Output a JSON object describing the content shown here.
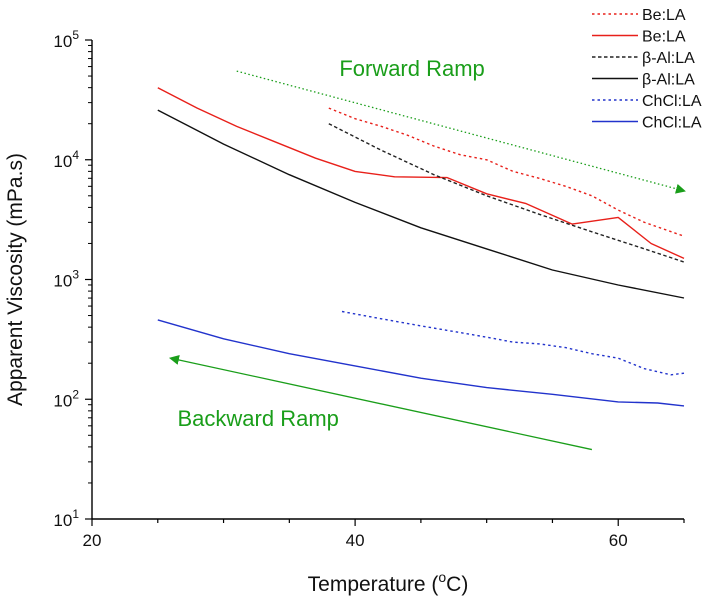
{
  "chart_data": {
    "type": "line",
    "title": "",
    "xlabel": "Temperature (oC)",
    "xlabel_parts": {
      "main": "Temperature (",
      "sup": "o",
      "tail": "C)"
    },
    "ylabel": "Apparent Viscosity (mPa.s)",
    "y_scale": "log",
    "xlim": [
      20,
      65
    ],
    "ylim": [
      10,
      100000
    ],
    "x_ticks": [
      20,
      40,
      60
    ],
    "x_tick_labels": [
      "20",
      "40",
      "60"
    ],
    "y_ticks": [
      10,
      100,
      1000,
      10000,
      100000
    ],
    "y_tick_labels": [
      {
        "base": "10",
        "exp": "1"
      },
      {
        "base": "10",
        "exp": "2"
      },
      {
        "base": "10",
        "exp": "3"
      },
      {
        "base": "10",
        "exp": "4"
      },
      {
        "base": "10",
        "exp": "5"
      }
    ],
    "legend_position": "top-right",
    "series": [
      {
        "name": "Be:LA",
        "color": "#e8201a",
        "dash": "dotted",
        "x": [
          38,
          40,
          42,
          44,
          46,
          48,
          50,
          52,
          54,
          56,
          58,
          60,
          62,
          65
        ],
        "y": [
          27000,
          22000,
          19000,
          16000,
          13000,
          11000,
          10000,
          8000,
          7000,
          6000,
          5000,
          3800,
          3000,
          2300
        ]
      },
      {
        "name": "Be:LA",
        "color": "#e8201a",
        "dash": "solid",
        "x": [
          25,
          28,
          31,
          34,
          37,
          40,
          43,
          47,
          50,
          53,
          56.5,
          60,
          62.5,
          65
        ],
        "y": [
          40000,
          27000,
          19000,
          14000,
          10300,
          8000,
          7200,
          7100,
          5200,
          4300,
          2900,
          3300,
          2000,
          1500
        ]
      },
      {
        "name": "β-Al:LA",
        "color": "#222222",
        "dash": "dashed",
        "x": [
          38,
          42,
          46,
          50,
          54,
          58,
          62,
          65
        ],
        "y": [
          20000,
          12000,
          7500,
          5000,
          3500,
          2500,
          1800,
          1400
        ]
      },
      {
        "name": "β-Al:LA",
        "color": "#111111",
        "dash": "solid",
        "x": [
          25,
          30,
          35,
          40,
          45,
          50,
          55,
          60,
          65
        ],
        "y": [
          26000,
          13500,
          7500,
          4400,
          2700,
          1800,
          1200,
          900,
          700
        ]
      },
      {
        "name": "ChCl:LA",
        "color": "#2233cc",
        "dash": "dotted",
        "x": [
          39,
          42,
          45,
          48,
          50,
          52,
          54,
          56,
          58,
          60,
          62,
          64,
          65
        ],
        "y": [
          540,
          470,
          410,
          360,
          330,
          300,
          290,
          270,
          240,
          220,
          180,
          160,
          165
        ]
      },
      {
        "name": "ChCl:LA",
        "color": "#2233cc",
        "dash": "solid",
        "x": [
          25,
          30,
          35,
          40,
          45,
          50,
          55,
          60,
          63,
          65
        ],
        "y": [
          460,
          320,
          240,
          190,
          150,
          125,
          110,
          95,
          93,
          88
        ]
      }
    ],
    "annotations": [
      {
        "text": "Forward Ramp",
        "color": "#1a9e1a",
        "label_anchor": {
          "x": 38.8,
          "y": 50000
        },
        "arrow": {
          "from": {
            "x": 31,
            "y": 55000
          },
          "to": {
            "x": 65,
            "y": 5500
          },
          "style": "dotted"
        }
      },
      {
        "text": "Backward Ramp",
        "color": "#1a9e1a",
        "label_anchor": {
          "x": 26.5,
          "y": 60
        },
        "arrow": {
          "from": {
            "x": 58,
            "y": 38
          },
          "to": {
            "x": 26,
            "y": 220
          },
          "style": "solid"
        }
      }
    ]
  }
}
